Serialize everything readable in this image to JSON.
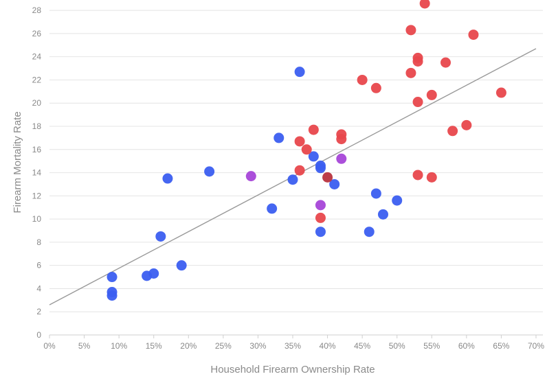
{
  "chart_data": {
    "type": "scatter",
    "title": "",
    "xlabel": "Household Firearm Ownership Rate",
    "ylabel": "Firearm Mortality Rate",
    "xlim": [
      0,
      70
    ],
    "ylim": [
      0,
      28.6
    ],
    "x_ticks": [
      0,
      5,
      10,
      15,
      20,
      25,
      30,
      35,
      40,
      45,
      50,
      55,
      60,
      65,
      70
    ],
    "x_tick_labels": [
      "0%",
      "5%",
      "10%",
      "15%",
      "20%",
      "25%",
      "30%",
      "35%",
      "40%",
      "45%",
      "50%",
      "55%",
      "60%",
      "65%",
      "70%"
    ],
    "y_ticks": [
      0,
      2,
      4,
      6,
      8,
      10,
      12,
      14,
      16,
      18,
      20,
      22,
      24,
      26,
      28
    ],
    "y_tick_labels": [
      "0",
      "2",
      "4",
      "6",
      "8",
      "10",
      "12",
      "14",
      "16",
      "18",
      "20",
      "22",
      "24",
      "26",
      "28"
    ],
    "grid": true,
    "trendline": {
      "x": [
        0,
        70
      ],
      "y": [
        2.6,
        24.7
      ]
    },
    "series": [
      {
        "color": "#3b5ef0",
        "points": [
          [
            36,
            22.7
          ],
          [
            33,
            17.0
          ],
          [
            38,
            15.4
          ],
          [
            39,
            14.6
          ],
          [
            39,
            14.4
          ],
          [
            35,
            13.4
          ],
          [
            41,
            13.0
          ],
          [
            23,
            14.1
          ],
          [
            17,
            13.5
          ],
          [
            32,
            10.9
          ],
          [
            47,
            12.2
          ],
          [
            50,
            11.6
          ],
          [
            48,
            10.4
          ],
          [
            39,
            8.9
          ],
          [
            46,
            8.9
          ],
          [
            16,
            8.5
          ],
          [
            19,
            6.0
          ],
          [
            14,
            5.1
          ],
          [
            15,
            5.3
          ],
          [
            9,
            5.0
          ],
          [
            9,
            3.7
          ],
          [
            9,
            3.4
          ]
        ]
      },
      {
        "color": "#e8474c",
        "points": [
          [
            54,
            28.6
          ],
          [
            52,
            26.3
          ],
          [
            61,
            25.9
          ],
          [
            53,
            23.9
          ],
          [
            53,
            23.6
          ],
          [
            57,
            23.5
          ],
          [
            52,
            22.6
          ],
          [
            45,
            22.0
          ],
          [
            47,
            21.3
          ],
          [
            55,
            20.7
          ],
          [
            53,
            20.1
          ],
          [
            65,
            20.9
          ],
          [
            60,
            18.1
          ],
          [
            58,
            17.6
          ],
          [
            38,
            17.7
          ],
          [
            42,
            17.3
          ],
          [
            42,
            16.9
          ],
          [
            36,
            16.7
          ],
          [
            37,
            16.0
          ],
          [
            36,
            14.2
          ],
          [
            53,
            13.8
          ],
          [
            55,
            13.6
          ],
          [
            39,
            10.1
          ]
        ]
      },
      {
        "color": "#a646d8",
        "points": [
          [
            29,
            13.7
          ],
          [
            42,
            15.2
          ],
          [
            39,
            11.2
          ]
        ]
      },
      {
        "color": "#b8333f",
        "points": [
          [
            40,
            13.6
          ]
        ]
      }
    ]
  }
}
